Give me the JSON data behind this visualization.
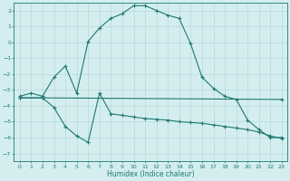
{
  "xlabel": "Humidex (Indice chaleur)",
  "bg_color": "#d4eef0",
  "grid_color": "#b8d8da",
  "line_color": "#1e7870",
  "xlim": [
    -0.5,
    23.5
  ],
  "ylim": [
    -7.5,
    2.5
  ],
  "yticks": [
    2,
    1,
    0,
    -1,
    -2,
    -3,
    -4,
    -5,
    -6,
    -7
  ],
  "xticks": [
    0,
    1,
    2,
    3,
    4,
    5,
    6,
    7,
    8,
    9,
    10,
    11,
    12,
    13,
    14,
    15,
    16,
    17,
    18,
    19,
    20,
    21,
    22,
    23
  ],
  "line1_x": [
    0,
    1,
    2,
    3,
    4,
    5,
    6,
    7,
    8,
    9,
    10,
    11,
    12,
    13,
    14,
    15,
    16,
    17,
    18,
    19,
    20,
    21,
    22,
    23
  ],
  "line1_y": [
    -3.4,
    -3.2,
    -3.4,
    -2.2,
    -1.5,
    -3.2,
    0.05,
    0.9,
    1.5,
    1.8,
    2.3,
    2.3,
    2.0,
    1.7,
    1.5,
    -0.1,
    -2.2,
    -2.9,
    -3.4,
    -3.6,
    -4.9,
    -5.5,
    -6.0,
    -6.0
  ],
  "line2_x": [
    0,
    2,
    23
  ],
  "line2_y": [
    -3.5,
    -3.5,
    -3.6
  ],
  "line3_x": [
    0,
    2,
    3,
    4,
    5,
    6,
    7,
    8,
    9,
    10,
    11,
    12,
    13,
    14,
    15,
    16,
    17,
    18,
    19,
    20,
    21,
    22,
    23
  ],
  "line3_y": [
    -3.5,
    -3.5,
    -4.1,
    -5.3,
    -5.9,
    -6.3,
    -3.2,
    -4.5,
    -4.6,
    -4.7,
    -4.8,
    -4.85,
    -4.9,
    -5.0,
    -5.05,
    -5.1,
    -5.2,
    -5.3,
    -5.4,
    -5.5,
    -5.65,
    -5.9,
    -6.05
  ]
}
